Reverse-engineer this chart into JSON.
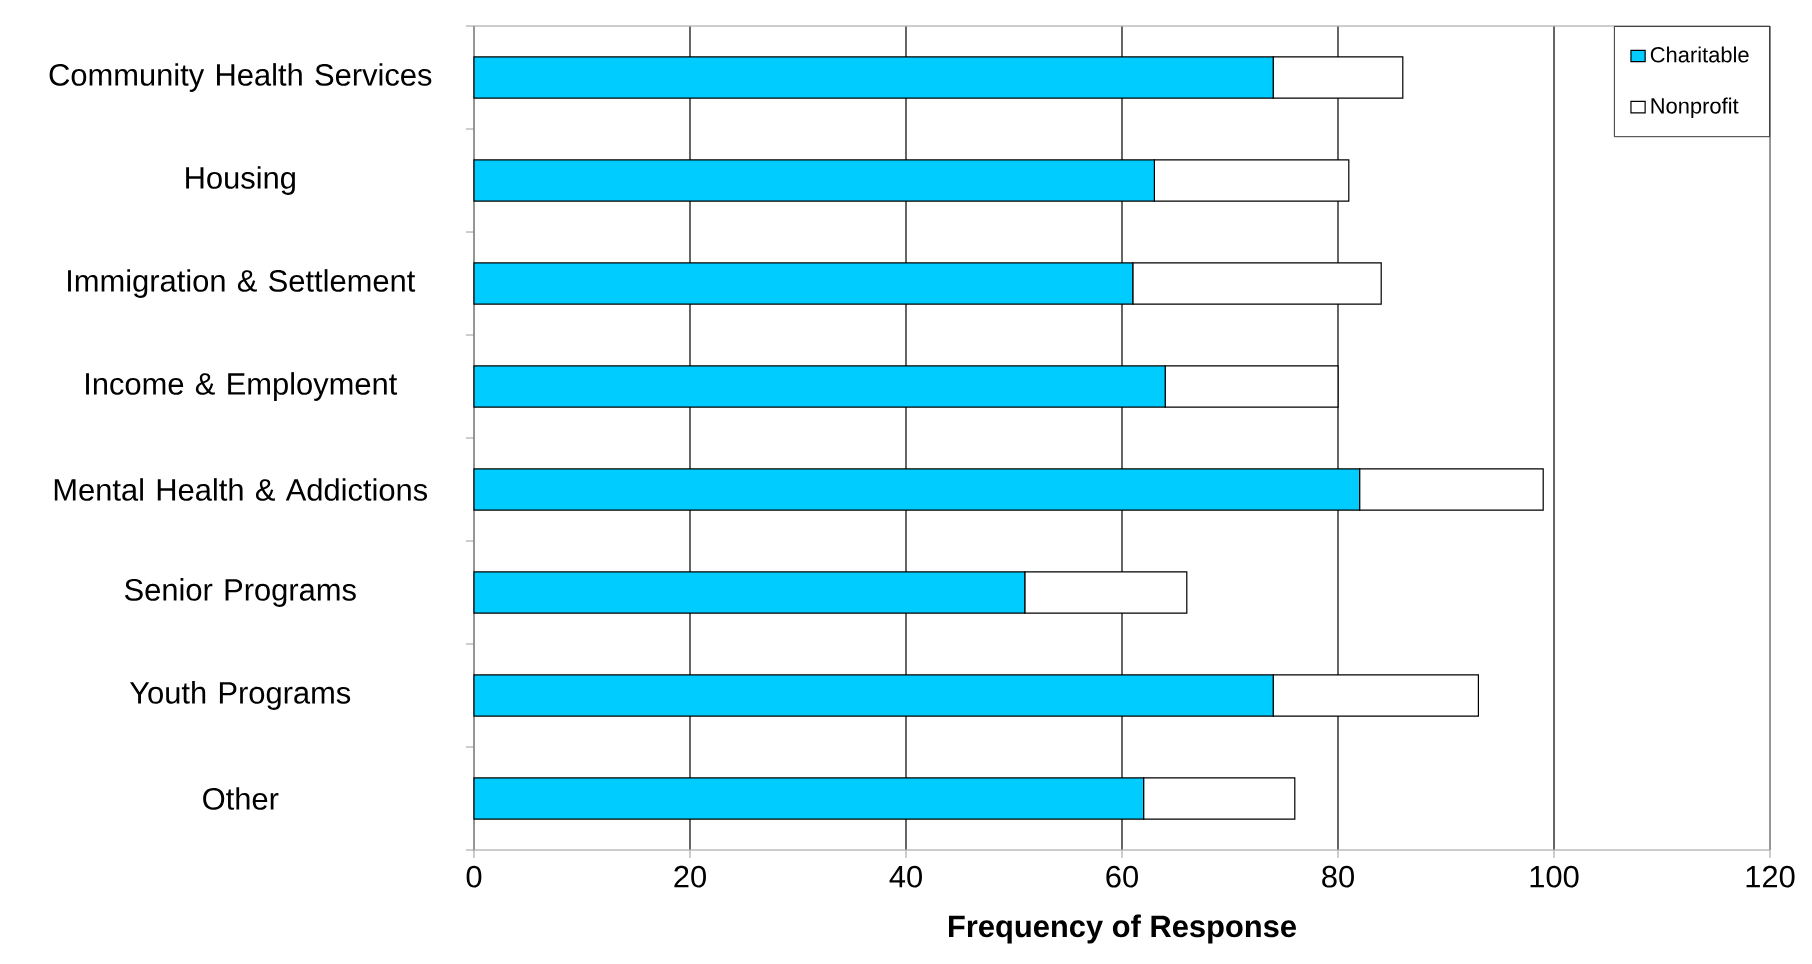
{
  "chart_data": {
    "type": "bar",
    "orientation": "horizontal",
    "stacked": true,
    "categories": [
      "Community Health Services",
      "Housing",
      "Immigration & Settlement",
      "Income & Employment",
      "Mental Health & Addictions",
      "Senior Programs",
      "Youth Programs",
      "Other"
    ],
    "series": [
      {
        "name": "Charitable",
        "color": "#00ccff",
        "values": [
          74,
          63,
          61,
          64,
          82,
          51,
          74,
          62
        ]
      },
      {
        "name": "Nonprofit",
        "color": "#ffffff",
        "values": [
          12,
          18,
          23,
          16,
          17,
          15,
          19,
          14
        ]
      }
    ],
    "xlabel": "Frequency of Response",
    "xlim": [
      0,
      120
    ],
    "xticks": [
      0,
      20,
      40,
      60,
      80,
      100,
      120
    ],
    "grid": "x",
    "legend": "top right"
  }
}
